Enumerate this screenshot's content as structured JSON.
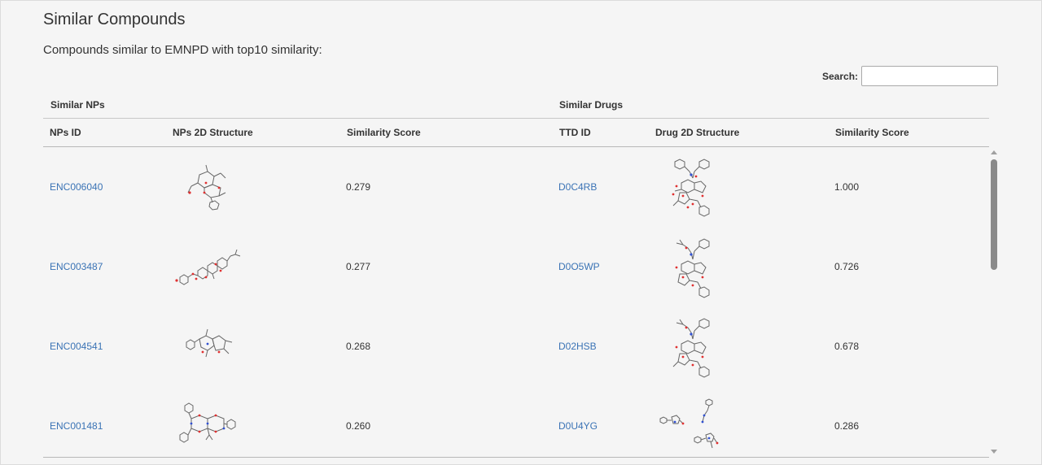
{
  "page": {
    "title": "Similar Compounds",
    "subtitle": "Compounds similar to EMNPD with top10 similarity:"
  },
  "search": {
    "label": "Search:",
    "value": "",
    "placeholder": ""
  },
  "table": {
    "group_headers": {
      "nps": "Similar NPs",
      "drugs": "Similar Drugs"
    },
    "columns": {
      "nps_id": "NPs ID",
      "nps_structure": "NPs 2D Structure",
      "nps_score": "Similarity Score",
      "ttd_id": "TTD ID",
      "drug_structure": "Drug 2D Structure",
      "drug_score": "Similarity Score"
    },
    "rows": [
      {
        "np_id": "ENC006040",
        "np_score": "0.279",
        "ttd_id": "D0C4RB",
        "drug_score": "1.000"
      },
      {
        "np_id": "ENC003487",
        "np_score": "0.277",
        "ttd_id": "D0O5WP",
        "drug_score": "0.726"
      },
      {
        "np_id": "ENC004541",
        "np_score": "0.268",
        "ttd_id": "D02HSB",
        "drug_score": "0.678"
      },
      {
        "np_id": "ENC001481",
        "np_score": "0.260",
        "ttd_id": "D0U4YG",
        "drug_score": "0.286"
      }
    ]
  },
  "colors": {
    "link": "#3a73b5",
    "heteroatom_o": "#e03030",
    "heteroatom_n": "#3050d0",
    "bond": "#555555"
  },
  "icons": {
    "scroll_up": "triangle-up-icon",
    "scroll_down": "triangle-down-icon"
  }
}
